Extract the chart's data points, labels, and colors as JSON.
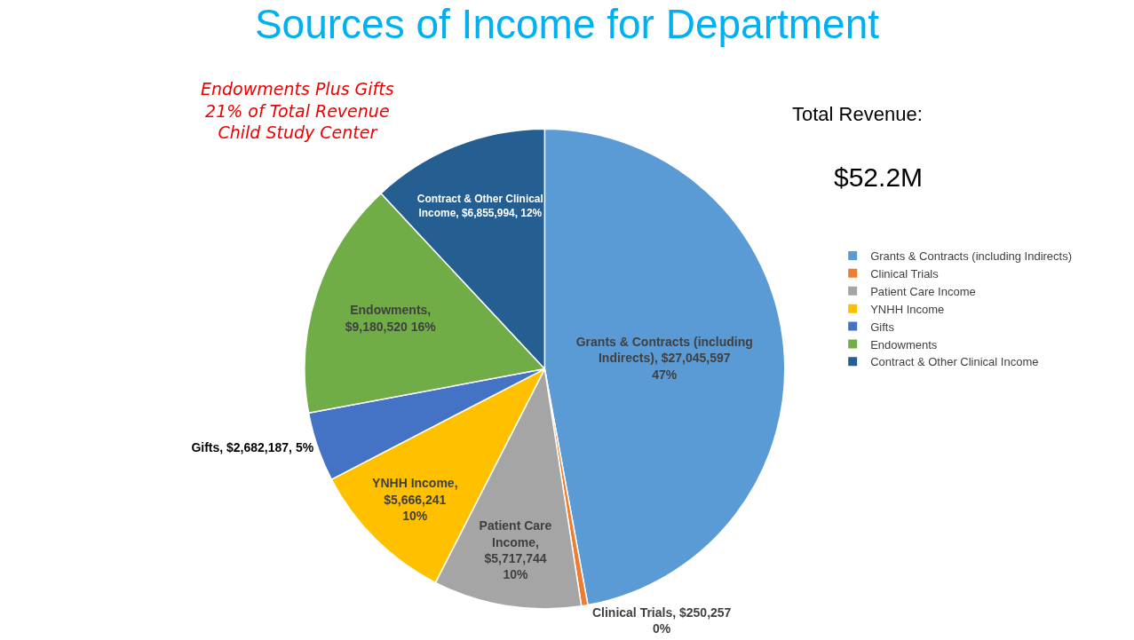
{
  "chart_data": {
    "type": "pie",
    "title": "Sources of Income for Department",
    "categories": [
      "Grants & Contracts (including Indirects)",
      "Clinical Trials",
      "Patient Care Income",
      "YNHH Income",
      "Gifts",
      "Endowments",
      "Contract & Other Clinical Income"
    ],
    "values": [
      27045597,
      250257,
      5717744,
      5666241,
      2682187,
      9180520,
      6855994
    ],
    "colors": [
      "#5b9bd5",
      "#ed7d31",
      "#a5a5a5",
      "#ffc000",
      "#4472c4",
      "#70ad47",
      "#255e91"
    ],
    "value_labels": [
      "Grants & Contracts (including\nIndirects), $27,045,597\n47%",
      "Clinical Trials, $250,257\n0%",
      "Patient Care\nIncome,\n$5,717,744\n10%",
      "YNHH Income,\n$5,666,241\n10%",
      "Gifts, $2,682,187, 5%",
      "Endowments,\n$9,180,520 16%",
      "Contract & Other Clinical\nIncome, $6,855,994, 12%"
    ],
    "annotations": [
      "Endowments Plus Gifts\n21% of Total Revenue\nChild Study Center",
      "Total Revenue:",
      "$52.2M"
    ],
    "legend": "right"
  }
}
